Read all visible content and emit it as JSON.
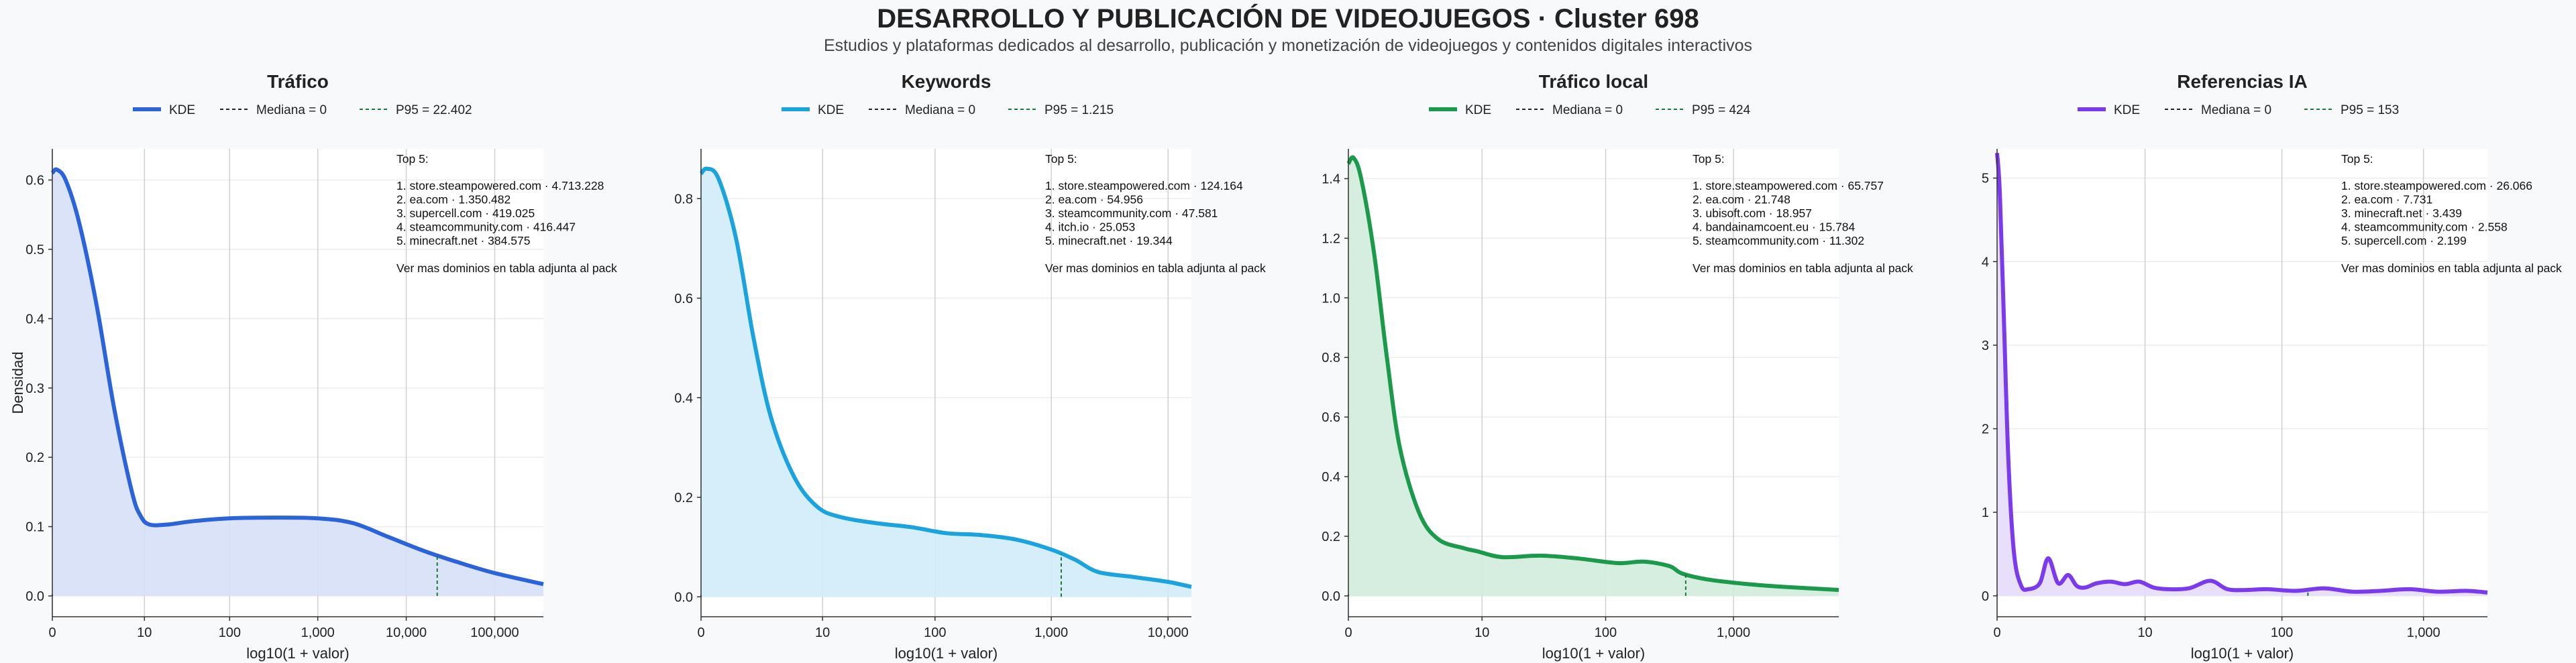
{
  "header": {
    "title": "DESARROLLO Y PUBLICACIÓN DE VIDEOJUEGOS · Cluster 698",
    "subtitle": "Estudios y plataformas dedicados al desarrollo, publicación y monetización de videojuegos y contenidos digitales interactivos"
  },
  "y_axis_label": "Densidad",
  "chart_data": [
    {
      "type": "area",
      "title": "Tráfico",
      "color": "#2b63d9",
      "fill": "#d6e0f7",
      "xlabel": "log10(1 + valor)",
      "ylabel": "Densidad",
      "xlim": [
        0,
        5.55
      ],
      "ylim": [
        -0.03,
        0.645
      ],
      "xticks": [
        {
          "v": 0,
          "label": "0"
        },
        {
          "v": 1.041,
          "label": "10"
        },
        {
          "v": 2.004,
          "label": "100"
        },
        {
          "v": 3.0,
          "label": "1,000"
        },
        {
          "v": 4.0,
          "label": "10,000"
        },
        {
          "v": 5.0,
          "label": "100,000"
        }
      ],
      "yticks": [
        {
          "v": 0,
          "label": "0.0"
        },
        {
          "v": 0.1,
          "label": "0.1"
        },
        {
          "v": 0.2,
          "label": "0.2"
        },
        {
          "v": 0.3,
          "label": "0.3"
        },
        {
          "v": 0.4,
          "label": "0.4"
        },
        {
          "v": 0.5,
          "label": "0.5"
        },
        {
          "v": 0.6,
          "label": "0.6"
        }
      ],
      "legend": [
        "KDE",
        "Mediana = 0",
        "P95 = 22.402"
      ],
      "median": 0,
      "p95": 4.35,
      "series": [
        {
          "name": "KDE",
          "x": [
            0,
            0.05,
            0.15,
            0.3,
            0.5,
            0.7,
            0.9,
            1.0,
            1.1,
            1.3,
            1.6,
            2.0,
            2.5,
            3.0,
            3.4,
            3.8,
            4.2,
            4.6,
            5.0,
            5.55
          ],
          "y": [
            0.61,
            0.615,
            0.6,
            0.54,
            0.42,
            0.27,
            0.15,
            0.115,
            0.103,
            0.103,
            0.108,
            0.112,
            0.113,
            0.112,
            0.105,
            0.085,
            0.065,
            0.048,
            0.033,
            0.017
          ]
        }
      ],
      "top5": {
        "heading": "Top 5:",
        "items": [
          "1. store.steampowered.com · 4.713.228",
          "2. ea.com · 1.350.482",
          "3. supercell.com · 419.025",
          "4. steamcommunity.com · 416.447",
          "5. minecraft.net · 384.575"
        ],
        "note": "Ver mas dominios en tabla adjunta al pack"
      }
    },
    {
      "type": "area",
      "title": "Keywords",
      "color": "#1aa3dc",
      "fill": "#d0ecf9",
      "xlabel": "log10(1 + valor)",
      "ylabel": "",
      "xlim": [
        0,
        4.2
      ],
      "ylim": [
        -0.04,
        0.9
      ],
      "xticks": [
        {
          "v": 0,
          "label": "0"
        },
        {
          "v": 1.041,
          "label": "10"
        },
        {
          "v": 2.004,
          "label": "100"
        },
        {
          "v": 3.0,
          "label": "1,000"
        },
        {
          "v": 4.0,
          "label": "10,000"
        }
      ],
      "yticks": [
        {
          "v": 0,
          "label": "0.0"
        },
        {
          "v": 0.2,
          "label": "0.2"
        },
        {
          "v": 0.4,
          "label": "0.4"
        },
        {
          "v": 0.6,
          "label": "0.6"
        },
        {
          "v": 0.8,
          "label": "0.8"
        }
      ],
      "legend": [
        "KDE",
        "Mediana = 0",
        "P95 = 1.215"
      ],
      "median": 0,
      "p95": 3.085,
      "series": [
        {
          "name": "KDE",
          "x": [
            0,
            0.05,
            0.15,
            0.3,
            0.45,
            0.6,
            0.8,
            1.0,
            1.2,
            1.5,
            1.8,
            2.1,
            2.4,
            2.7,
            3.0,
            3.2,
            3.4,
            3.7,
            4.0,
            4.2
          ],
          "y": [
            0.85,
            0.86,
            0.84,
            0.72,
            0.52,
            0.36,
            0.24,
            0.18,
            0.16,
            0.148,
            0.14,
            0.128,
            0.124,
            0.115,
            0.095,
            0.075,
            0.05,
            0.04,
            0.03,
            0.02
          ]
        }
      ],
      "top5": {
        "heading": "Top 5:",
        "items": [
          "1. store.steampowered.com · 124.164",
          "2. ea.com · 54.956",
          "3. steamcommunity.com · 47.581",
          "4. itch.io · 25.053",
          "5. minecraft.net · 19.344"
        ],
        "note": "Ver mas dominios en tabla adjunta al pack"
      }
    },
    {
      "type": "area",
      "title": "Tráfico local",
      "color": "#1a9a4a",
      "fill": "#d1ecdb",
      "xlabel": "log10(1 + valor)",
      "ylabel": "",
      "xlim": [
        0,
        3.82
      ],
      "ylim": [
        -0.07,
        1.5
      ],
      "xticks": [
        {
          "v": 0,
          "label": "0"
        },
        {
          "v": 1.041,
          "label": "10"
        },
        {
          "v": 2.004,
          "label": "100"
        },
        {
          "v": 3.0,
          "label": "1,000"
        }
      ],
      "yticks": [
        {
          "v": 0,
          "label": "0.0"
        },
        {
          "v": 0.2,
          "label": "0.2"
        },
        {
          "v": 0.4,
          "label": "0.4"
        },
        {
          "v": 0.6,
          "label": "0.6"
        },
        {
          "v": 0.8,
          "label": "0.8"
        },
        {
          "v": 1.0,
          "label": "1.0"
        },
        {
          "v": 1.2,
          "label": "1.2"
        },
        {
          "v": 1.4,
          "label": "1.4"
        }
      ],
      "legend": [
        "KDE",
        "Mediana = 0",
        "P95 = 424"
      ],
      "median": 0,
      "p95": 2.628,
      "series": [
        {
          "name": "KDE",
          "x": [
            0,
            0.04,
            0.1,
            0.2,
            0.3,
            0.4,
            0.55,
            0.7,
            0.9,
            1.0,
            1.2,
            1.5,
            1.8,
            2.1,
            2.3,
            2.5,
            2.6,
            2.8,
            3.1,
            3.4,
            3.82
          ],
          "y": [
            1.45,
            1.47,
            1.4,
            1.15,
            0.8,
            0.5,
            0.28,
            0.19,
            0.16,
            0.15,
            0.13,
            0.135,
            0.125,
            0.11,
            0.115,
            0.1,
            0.075,
            0.055,
            0.04,
            0.03,
            0.02
          ]
        }
      ],
      "top5": {
        "heading": "Top 5:",
        "items": [
          "1. store.steampowered.com · 65.757",
          "2. ea.com · 21.748",
          "3. ubisoft.com · 18.957",
          "4. bandainamcoent.eu · 15.784",
          "5. steamcommunity.com · 11.302"
        ],
        "note": "Ver mas dominios en tabla adjunta al pack"
      }
    },
    {
      "type": "area",
      "title": "Referencias IA",
      "color": "#7c3aed",
      "fill": "#e6dcf9",
      "xlabel": "log10(1 + valor)",
      "ylabel": "",
      "xlim": [
        0,
        3.45
      ],
      "ylim": [
        -0.25,
        5.35
      ],
      "xticks": [
        {
          "v": 0,
          "label": "0"
        },
        {
          "v": 1.041,
          "label": "10"
        },
        {
          "v": 2.004,
          "label": "100"
        },
        {
          "v": 3.0,
          "label": "1,000"
        }
      ],
      "yticks": [
        {
          "v": 0,
          "label": "0"
        },
        {
          "v": 1,
          "label": "1"
        },
        {
          "v": 2,
          "label": "2"
        },
        {
          "v": 3,
          "label": "3"
        },
        {
          "v": 4,
          "label": "4"
        },
        {
          "v": 5,
          "label": "5"
        }
      ],
      "legend": [
        "KDE",
        "Mediana = 0",
        "P95 = 153"
      ],
      "median": 0,
      "p95": 2.187,
      "series": [
        {
          "name": "KDE",
          "x": [
            0,
            0.02,
            0.05,
            0.08,
            0.12,
            0.17,
            0.22,
            0.3,
            0.36,
            0.43,
            0.5,
            0.56,
            0.62,
            0.7,
            0.8,
            0.9,
            1.0,
            1.1,
            1.2,
            1.35,
            1.5,
            1.62,
            1.75,
            1.9,
            2.1,
            2.3,
            2.5,
            2.7,
            2.9,
            3.1,
            3.3,
            3.45
          ],
          "y": [
            5.3,
            4.8,
            3.2,
            1.6,
            0.5,
            0.12,
            0.08,
            0.15,
            0.45,
            0.15,
            0.25,
            0.12,
            0.1,
            0.15,
            0.17,
            0.14,
            0.17,
            0.1,
            0.08,
            0.09,
            0.18,
            0.08,
            0.07,
            0.08,
            0.06,
            0.09,
            0.05,
            0.06,
            0.08,
            0.05,
            0.06,
            0.04
          ]
        }
      ],
      "top5": {
        "heading": "Top 5:",
        "items": [
          "1. store.steampowered.com · 26.066",
          "2. ea.com · 7.731",
          "3. minecraft.net · 3.439",
          "4. steamcommunity.com · 2.558",
          "5. supercell.com · 2.199"
        ],
        "note": "Ver mas dominios en tabla adjunta al pack"
      }
    }
  ]
}
